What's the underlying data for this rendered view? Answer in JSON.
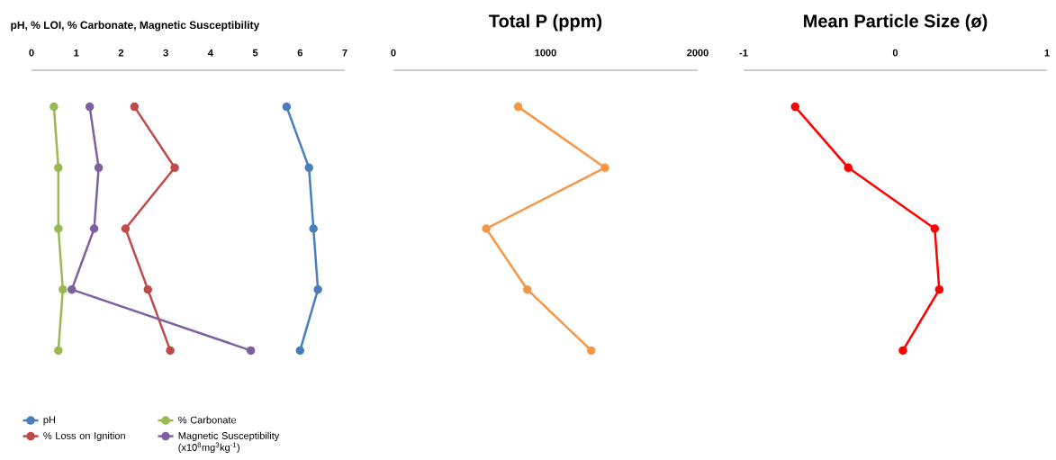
{
  "chart_data": [
    {
      "type": "line",
      "title": "pH, % LOI, % Carbonate, Magnetic Susceptibility",
      "orientation": "horizontal",
      "categories": [
        null,
        null,
        null,
        null,
        null
      ],
      "xlim": [
        0,
        7
      ],
      "xticks": [
        0,
        1,
        2,
        3,
        4,
        5,
        6,
        7
      ],
      "marker": "circle",
      "legend": "bottom",
      "series": [
        {
          "name": "pH",
          "color": "#4a7ebb",
          "values": [
            5.7,
            6.2,
            6.3,
            6.4,
            6.0
          ]
        },
        {
          "name": "% Carbonate",
          "color": "#98b954",
          "values": [
            0.5,
            0.6,
            0.6,
            0.7,
            0.6
          ]
        },
        {
          "name": "% Loss on Ignition",
          "color": "#be4b48",
          "values": [
            2.3,
            3.2,
            2.1,
            2.6,
            3.1
          ]
        },
        {
          "name": "Magnetic Susceptibility (x10$^{8}$mg$^{3}$kg$^{-1}$)",
          "color": "#7d60a0",
          "values": [
            1.3,
            1.5,
            1.4,
            0.9,
            4.9
          ]
        }
      ]
    },
    {
      "type": "line",
      "title": "Total P (ppm)",
      "orientation": "horizontal",
      "categories": [
        null,
        null,
        null,
        null,
        null
      ],
      "xlim": [
        0,
        2000
      ],
      "xticks": [
        0,
        1000,
        2000
      ],
      "marker": "circle",
      "series": [
        {
          "color": "#f79646",
          "values": [
            820,
            1390,
            610,
            880,
            1300
          ]
        }
      ]
    },
    {
      "type": "line",
      "title": "Mean Particle Size (ø)",
      "orientation": "horizontal",
      "categories": [
        null,
        null,
        null,
        null,
        null
      ],
      "xlim": [
        -1,
        1
      ],
      "xticks": [
        -1,
        0,
        1
      ],
      "marker": "circle",
      "series": [
        {
          "color": "#ff0000",
          "values": [
            -0.66,
            -0.31,
            0.26,
            0.29,
            0.05
          ]
        }
      ]
    }
  ]
}
